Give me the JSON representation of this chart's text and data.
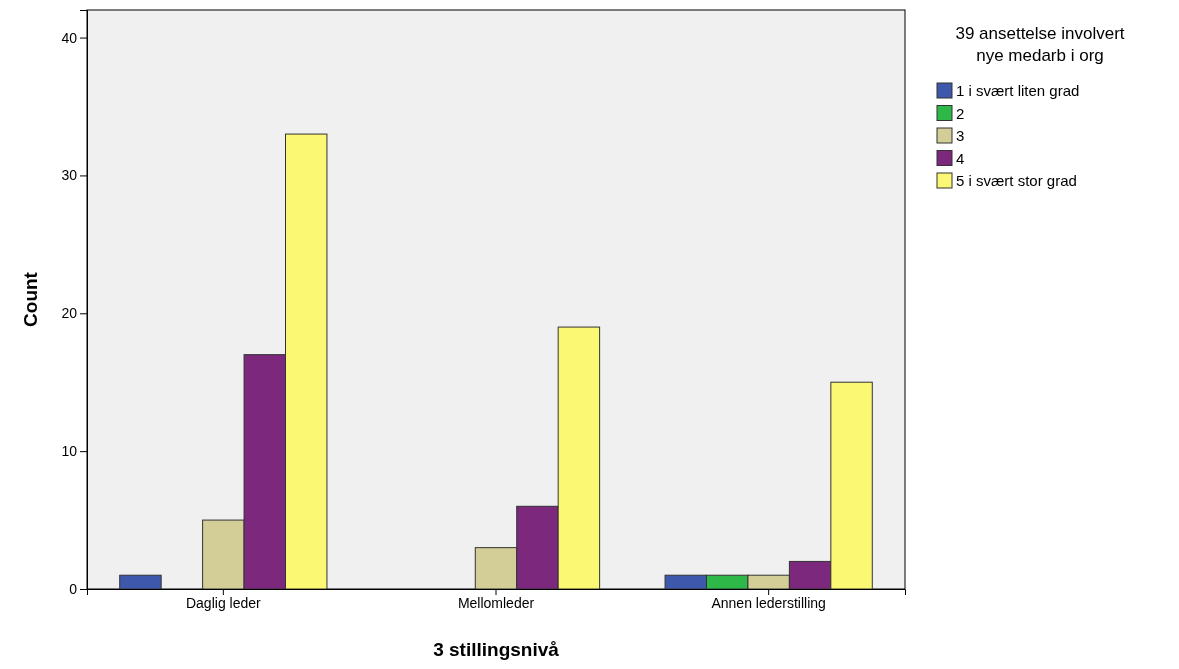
{
  "chart_data": {
    "type": "bar",
    "xlabel": "3 stillingsnivå",
    "ylabel": "Count",
    "legend_title": "39 ansettelse involvert nye medarb i org",
    "legend": "right",
    "grid": false,
    "categories": [
      "Daglig leder",
      "Mellomleder",
      "Annen lederstilling"
    ],
    "ylim": [
      0,
      42
    ],
    "yticks": [
      0,
      10,
      20,
      30,
      40
    ],
    "series": [
      {
        "name": "1 i svært liten grad",
        "color": "#3e58ac",
        "values": [
          1,
          0,
          1
        ]
      },
      {
        "name": "2",
        "color": "#2eb848",
        "values": [
          0,
          0,
          1
        ]
      },
      {
        "name": "3",
        "color": "#d3ce97",
        "values": [
          5,
          3,
          1
        ]
      },
      {
        "name": "4",
        "color": "#7c287d",
        "values": [
          17,
          6,
          2
        ]
      },
      {
        "name": "5 i svært stor grad",
        "color": "#fbf873",
        "values": [
          33,
          19,
          15
        ]
      }
    ]
  }
}
